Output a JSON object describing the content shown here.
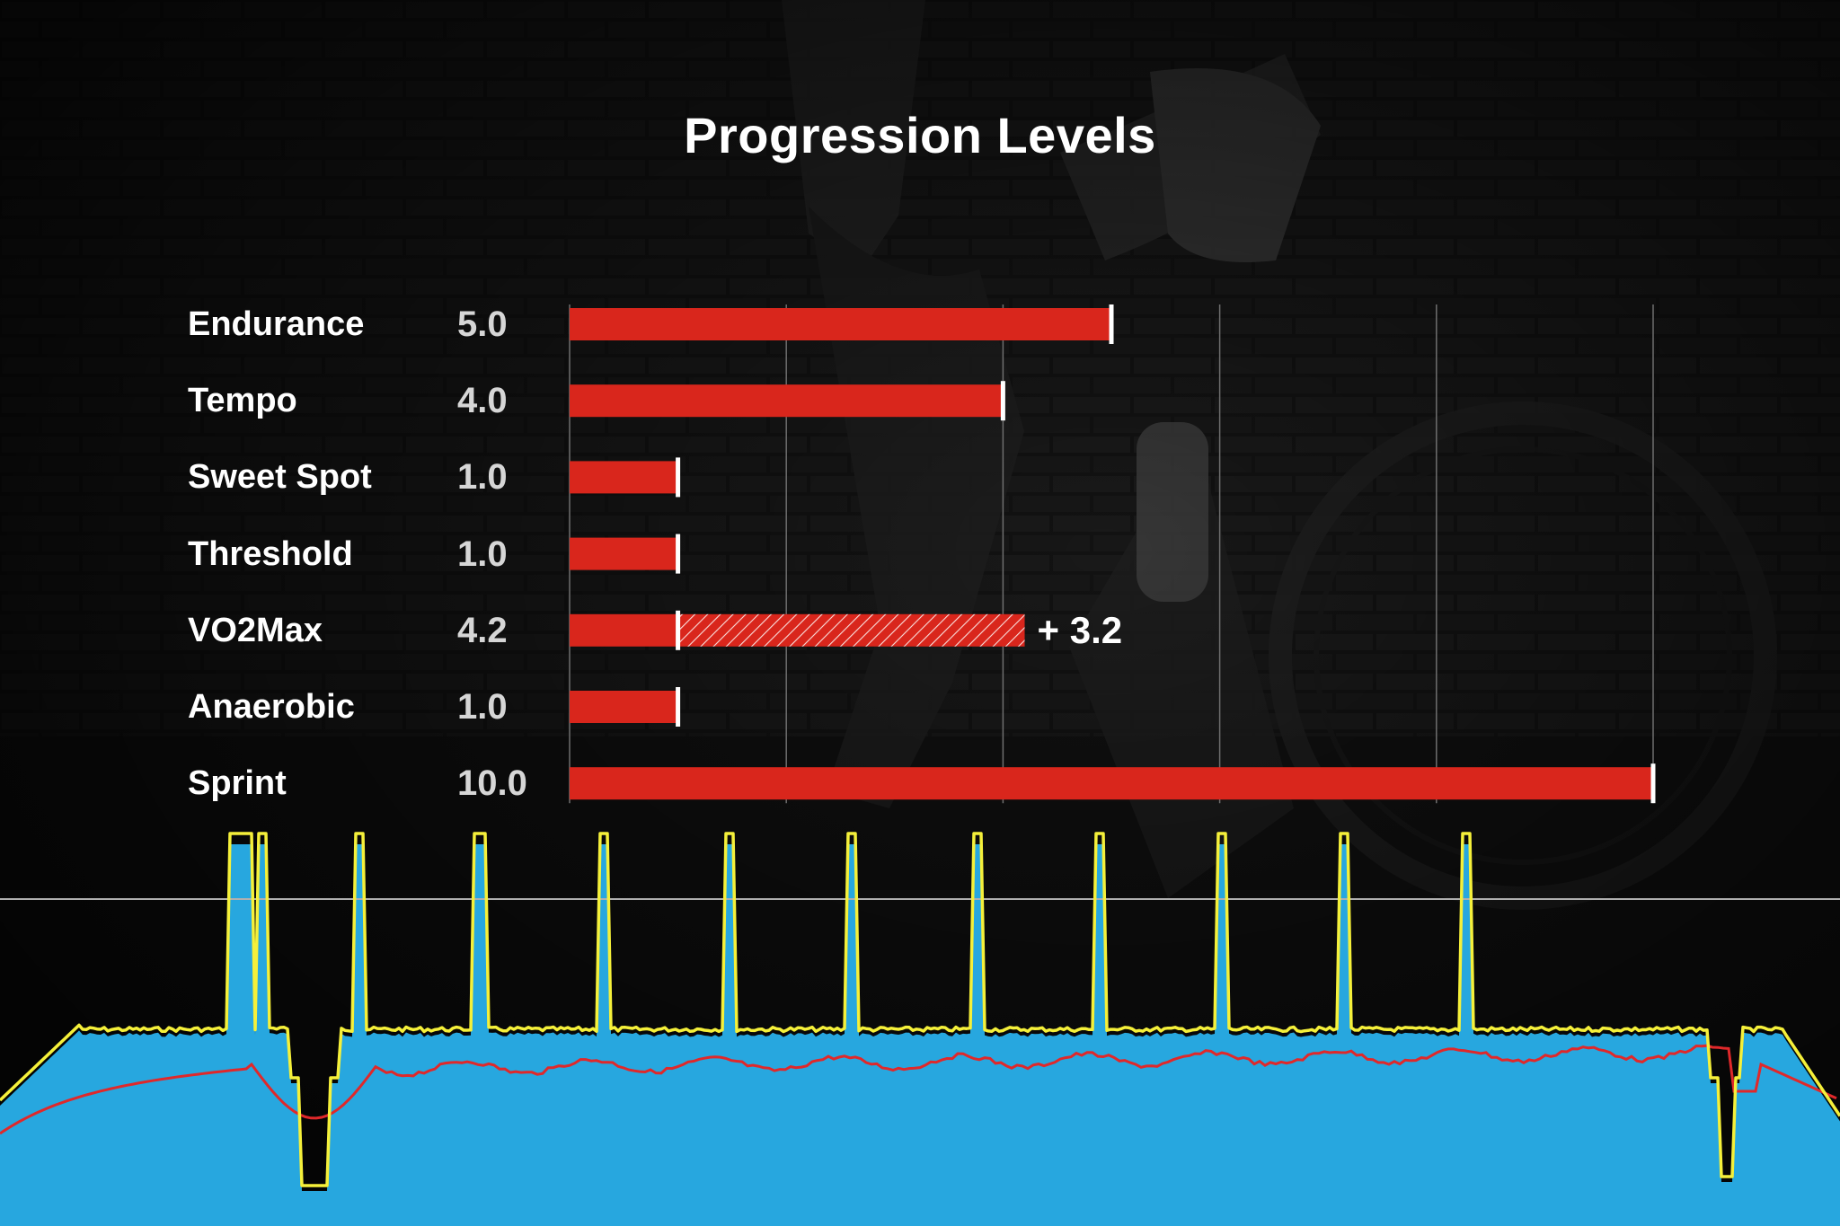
{
  "colors": {
    "bar": "#d9261c",
    "marker": "#ffffff",
    "power_fill": "#27a7df",
    "target_line": "#f5f03a",
    "hr_line": "#e0282a",
    "gridline": "#6e6e6e",
    "threshold_line": "#b0b0b0"
  },
  "chart_data": [
    {
      "type": "bar",
      "orientation": "horizontal",
      "title": "Progression Levels",
      "categories": [
        "Endurance",
        "Tempo",
        "Sweet Spot",
        "Threshold",
        "VO2Max",
        "Anaerobic",
        "Sprint"
      ],
      "value_labels": [
        "5.0",
        "4.0",
        "1.0",
        "1.0",
        "4.2",
        "1.0",
        "10.0"
      ],
      "series": [
        {
          "values": [
            5.0,
            4.0,
            1.0,
            1.0,
            1.0,
            1.0,
            10.0
          ]
        },
        {
          "values": [
            0,
            0,
            0,
            0,
            3.2,
            0,
            0
          ],
          "style": "hatched"
        }
      ],
      "annotations": [
        {
          "category": "VO2Max",
          "text": "+ 3.2"
        }
      ],
      "xlim": [
        0,
        10
      ],
      "gridlines": [
        2,
        4,
        6,
        8,
        10
      ],
      "grid": true
    },
    {
      "type": "area",
      "description_axes": "none shown",
      "series": [
        {
          "role": "power",
          "style": "area"
        },
        {
          "role": "target",
          "style": "line"
        },
        {
          "role": "heart-rate",
          "style": "line"
        }
      ],
      "target_intervals": 13,
      "reference_line": true,
      "grid": false
    }
  ]
}
